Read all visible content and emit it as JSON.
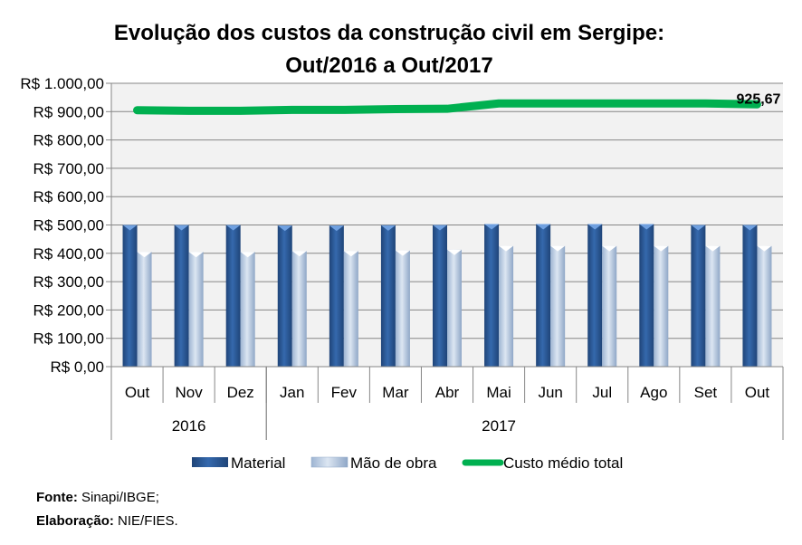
{
  "chart_data": {
    "type": "bar",
    "title": [
      "Evolução dos custos da construção civil em Sergipe:",
      "Out/2016 a Out/2017"
    ],
    "xlabel": "",
    "ylabel": "",
    "ylim": [
      0,
      1000
    ],
    "yticks": [
      0,
      100,
      200,
      300,
      400,
      500,
      600,
      700,
      800,
      900,
      1000
    ],
    "ytick_labels": [
      "R$ 0,00",
      "R$ 100,00",
      "R$ 200,00",
      "R$ 300,00",
      "R$ 400,00",
      "R$ 500,00",
      "R$ 600,00",
      "R$ 700,00",
      "R$ 800,00",
      "R$ 900,00",
      "R$ 1.000,00"
    ],
    "grid": true,
    "categories": [
      "Out",
      "Nov",
      "Dez",
      "Jan",
      "Fev",
      "Mar",
      "Abr",
      "Mai",
      "Jun",
      "Jul",
      "Ago",
      "Set",
      "Out"
    ],
    "year_groups": [
      {
        "label": "2016",
        "count": 3
      },
      {
        "label": "2017",
        "count": 10
      }
    ],
    "series": [
      {
        "name": "Material",
        "type": "bar",
        "color": "#2F5C9A",
        "values": [
          500,
          500,
          500,
          498,
          498,
          499,
          500,
          503,
          503,
          503,
          503,
          500,
          500
        ]
      },
      {
        "name": "Mão de obra",
        "type": "bar",
        "color": "#B8CCE4",
        "values": [
          405,
          405,
          405,
          408,
          408,
          410,
          413,
          426,
          426,
          426,
          426,
          426,
          426
        ]
      },
      {
        "name": "Custo médio total",
        "type": "line",
        "color": "#00B050",
        "values": [
          905,
          903,
          903,
          906,
          906,
          909,
          910,
          929,
          929,
          929,
          929,
          929,
          925.67
        ]
      }
    ],
    "annotations": [
      {
        "category_index": 12,
        "series": "Custo médio total",
        "text": "925,67"
      }
    ],
    "legend": {
      "position": "bottom",
      "entries": [
        "Material",
        "Mão de obra",
        "Custo médio total"
      ]
    }
  },
  "footer": {
    "source_label": "Fonte:",
    "source_value": "Sinapi/IBGE;",
    "credit_label": "Elaboração:",
    "credit_value": "NIE/FIES."
  }
}
